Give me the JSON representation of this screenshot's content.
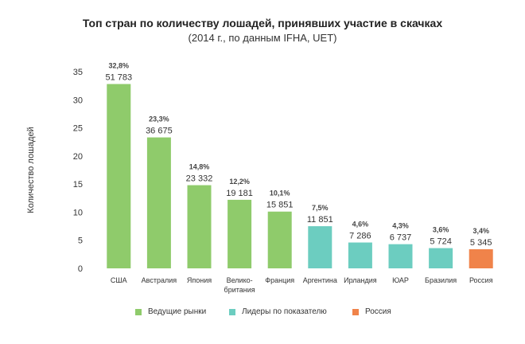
{
  "chart_data": {
    "type": "bar",
    "title": "Топ стран по количеству лошадей, принявших участие в скачках",
    "subtitle": "(2014 г., по данным IFHA, UET)",
    "ylabel": "Количество лошадей",
    "ylim": [
      0,
      35
    ],
    "yticks": [
      "0",
      "5",
      "10",
      "15",
      "20",
      "25",
      "30",
      "35"
    ],
    "grid": false,
    "legend_position": "bottom",
    "categories": [
      [
        "США"
      ],
      [
        "Австралия"
      ],
      [
        "Япония"
      ],
      [
        "Велико-",
        "британия"
      ],
      [
        "Франция"
      ],
      [
        "Аргентина"
      ],
      [
        "Ирландия"
      ],
      [
        "ЮАР"
      ],
      [
        "Бразилия"
      ],
      [
        "Россия"
      ]
    ],
    "values": [
      32.8,
      23.3,
      14.8,
      12.2,
      10.1,
      7.5,
      4.6,
      4.3,
      3.6,
      3.4
    ],
    "percent_labels": [
      "32,8%",
      "23,3%",
      "14,8%",
      "12,2%",
      "10,1%",
      "7,5%",
      "4,6%",
      "4,3%",
      "3,6%",
      "3,4%"
    ],
    "count_labels": [
      "51 783",
      "36 675",
      "23 332",
      "19 181",
      "15 851",
      "11 851",
      "7 286",
      "6 737",
      "5 724",
      "5 345"
    ],
    "groups": [
      0,
      0,
      0,
      0,
      0,
      1,
      1,
      1,
      1,
      2
    ],
    "legend": [
      {
        "label": "Ведущие рынки",
        "color": "#8fcb6b"
      },
      {
        "label": "Лидеры по показателю",
        "color": "#6ccdc0"
      },
      {
        "label": "Россия",
        "color": "#f0834a"
      }
    ]
  }
}
